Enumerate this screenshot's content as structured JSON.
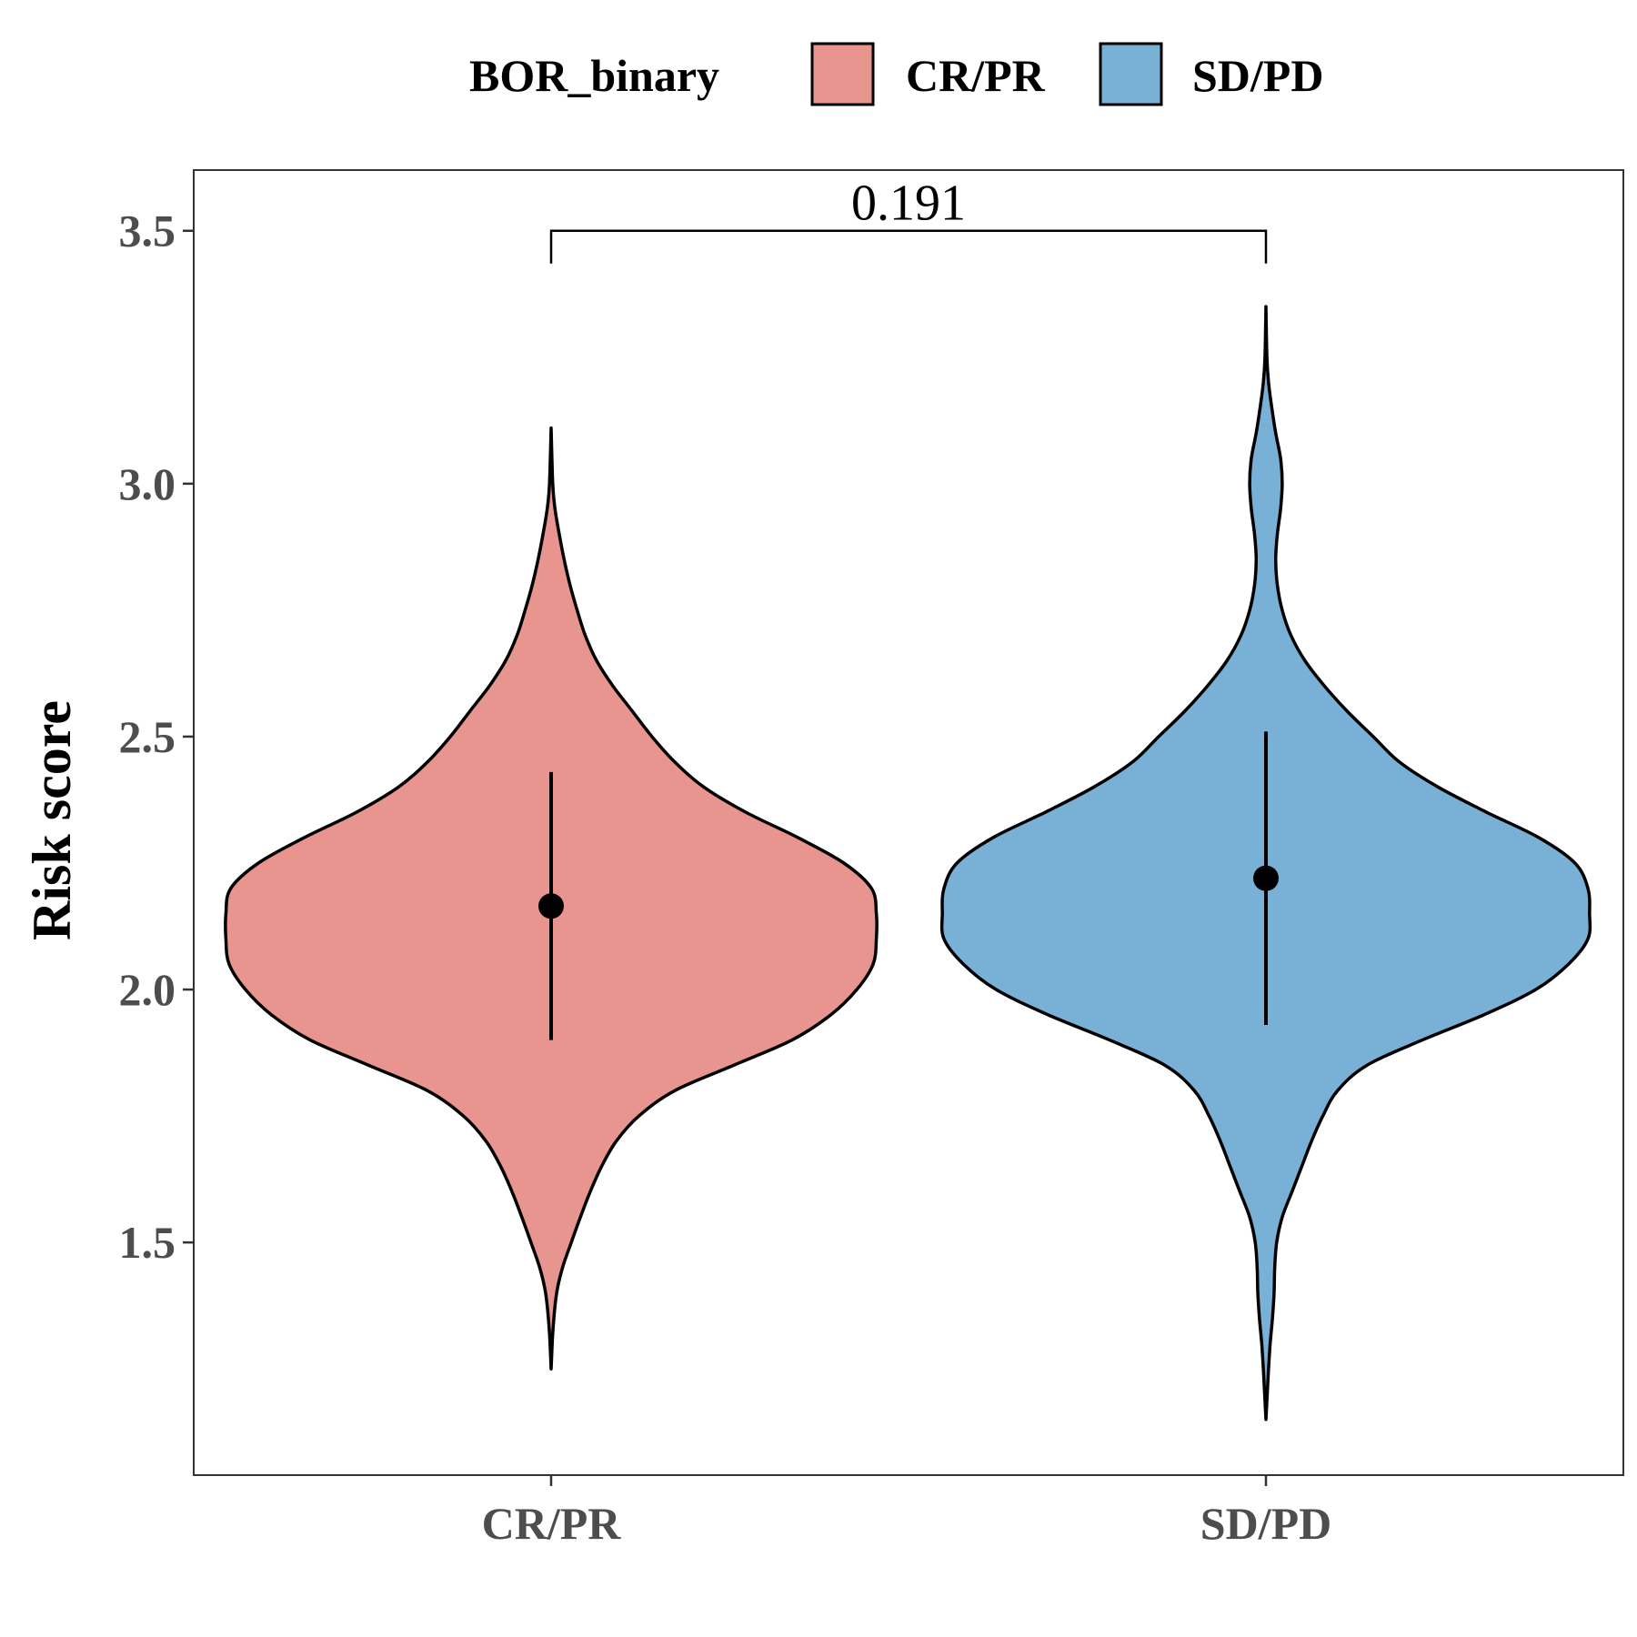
{
  "chart_data": {
    "type": "violin",
    "title": "",
    "xlabel": "",
    "ylabel": "Risk score",
    "ylim": [
      1.04,
      3.62
    ],
    "yticks": [
      1.5,
      2.0,
      2.5,
      3.0,
      3.5
    ],
    "ytick_labels": [
      "1.5",
      "2.0",
      "2.5",
      "3.0",
      "3.5"
    ],
    "categories": [
      "CR/PR",
      "SD/PD"
    ],
    "legend": {
      "title": "BOR_binary",
      "position": "top",
      "entries": [
        {
          "label": "CR/PR",
          "color": "#e8948f"
        },
        {
          "label": "SD/PD",
          "color": "#78b0d6"
        }
      ]
    },
    "series": [
      {
        "category": "CR/PR",
        "color": "#e8948f",
        "median": 2.165,
        "range_low": 1.9,
        "range_high": 2.43,
        "min": 1.25,
        "max": 3.11,
        "density_profile": [
          [
            1.25,
            0.0
          ],
          [
            1.33,
            0.006
          ],
          [
            1.4,
            0.017
          ],
          [
            1.45,
            0.035
          ],
          [
            1.5,
            0.062
          ],
          [
            1.55,
            0.09
          ],
          [
            1.6,
            0.12
          ],
          [
            1.65,
            0.155
          ],
          [
            1.7,
            0.2
          ],
          [
            1.75,
            0.27
          ],
          [
            1.8,
            0.38
          ],
          [
            1.85,
            0.56
          ],
          [
            1.9,
            0.74
          ],
          [
            1.95,
            0.86
          ],
          [
            2.0,
            0.94
          ],
          [
            2.05,
            0.99
          ],
          [
            2.1,
            1.0
          ],
          [
            2.15,
            1.0
          ],
          [
            2.2,
            0.985
          ],
          [
            2.25,
            0.9
          ],
          [
            2.3,
            0.76
          ],
          [
            2.35,
            0.6
          ],
          [
            2.4,
            0.47
          ],
          [
            2.45,
            0.38
          ],
          [
            2.5,
            0.31
          ],
          [
            2.55,
            0.25
          ],
          [
            2.6,
            0.19
          ],
          [
            2.65,
            0.14
          ],
          [
            2.7,
            0.105
          ],
          [
            2.75,
            0.08
          ],
          [
            2.8,
            0.058
          ],
          [
            2.85,
            0.04
          ],
          [
            2.9,
            0.025
          ],
          [
            2.95,
            0.012
          ],
          [
            3.0,
            0.005
          ],
          [
            3.11,
            0.0
          ]
        ]
      },
      {
        "category": "SD/PD",
        "color": "#78b0d6",
        "median": 2.22,
        "range_low": 1.93,
        "range_high": 2.51,
        "min": 1.15,
        "max": 3.35,
        "density_profile": [
          [
            1.15,
            0.0
          ],
          [
            1.2,
            0.004
          ],
          [
            1.25,
            0.008
          ],
          [
            1.3,
            0.013
          ],
          [
            1.35,
            0.02
          ],
          [
            1.4,
            0.025
          ],
          [
            1.45,
            0.027
          ],
          [
            1.5,
            0.033
          ],
          [
            1.55,
            0.05
          ],
          [
            1.6,
            0.08
          ],
          [
            1.65,
            0.11
          ],
          [
            1.7,
            0.14
          ],
          [
            1.75,
            0.175
          ],
          [
            1.8,
            0.22
          ],
          [
            1.85,
            0.31
          ],
          [
            1.9,
            0.48
          ],
          [
            1.95,
            0.67
          ],
          [
            2.0,
            0.83
          ],
          [
            2.05,
            0.93
          ],
          [
            2.1,
            0.99
          ],
          [
            2.15,
            0.995
          ],
          [
            2.2,
            0.99
          ],
          [
            2.25,
            0.95
          ],
          [
            2.3,
            0.84
          ],
          [
            2.35,
            0.68
          ],
          [
            2.4,
            0.53
          ],
          [
            2.45,
            0.41
          ],
          [
            2.5,
            0.33
          ],
          [
            2.55,
            0.25
          ],
          [
            2.6,
            0.18
          ],
          [
            2.65,
            0.12
          ],
          [
            2.7,
            0.077
          ],
          [
            2.75,
            0.05
          ],
          [
            2.8,
            0.035
          ],
          [
            2.85,
            0.03
          ],
          [
            2.9,
            0.035
          ],
          [
            2.95,
            0.045
          ],
          [
            3.0,
            0.05
          ],
          [
            3.05,
            0.045
          ],
          [
            3.1,
            0.03
          ],
          [
            3.15,
            0.018
          ],
          [
            3.2,
            0.008
          ],
          [
            3.25,
            0.003
          ],
          [
            3.35,
            0.0
          ]
        ]
      }
    ],
    "comparison": {
      "groups": [
        "CR/PR",
        "SD/PD"
      ],
      "label": "0.191",
      "y": 3.5
    }
  }
}
